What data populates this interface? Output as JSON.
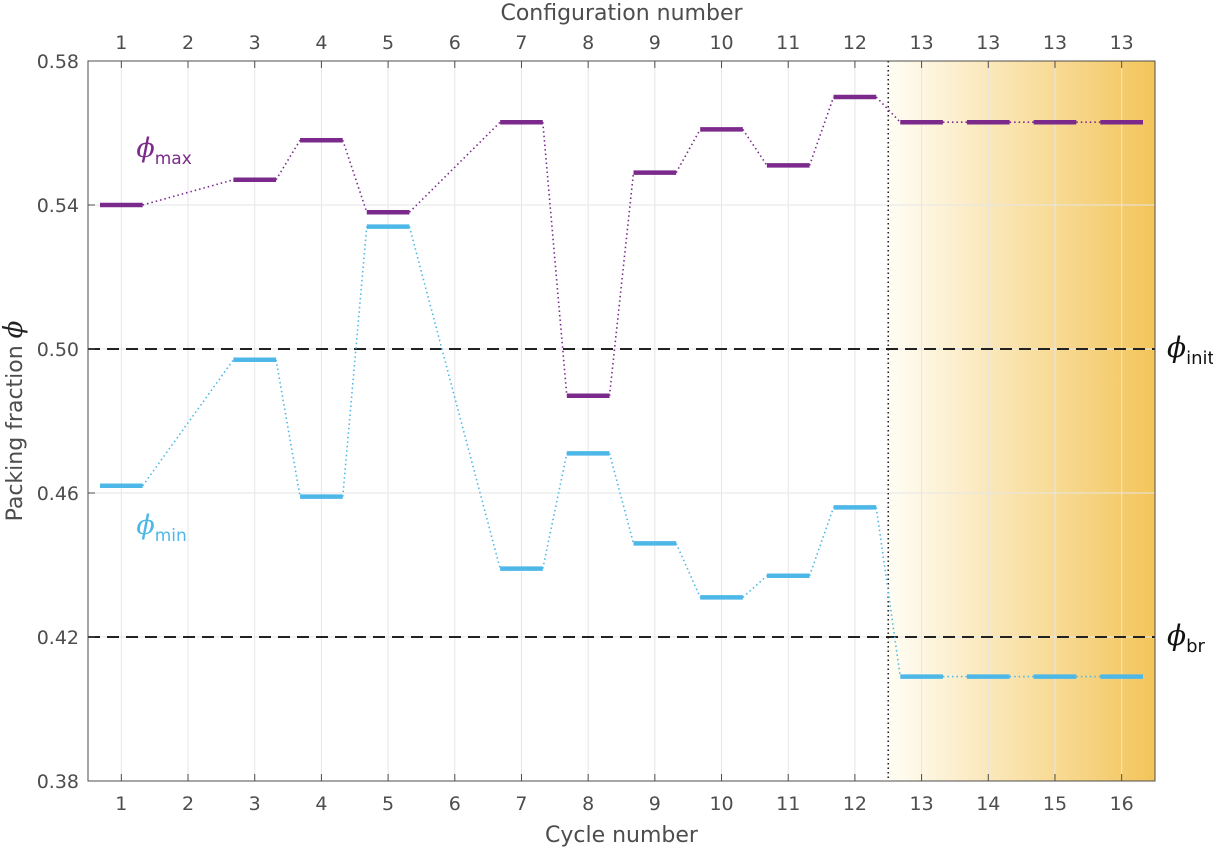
{
  "chart_data": {
    "type": "line",
    "xlabel": "Cycle number",
    "x2label": "Configuration number",
    "ylabel": "Packing fraction",
    "ylabel_symbol": "ϕ",
    "xlim": [
      0.5,
      16.5
    ],
    "ylim": [
      0.38,
      0.58
    ],
    "x_ticks": [
      1,
      2,
      3,
      4,
      5,
      6,
      7,
      8,
      9,
      10,
      11,
      12,
      13,
      14,
      15,
      16
    ],
    "x_tick_labels": [
      "1",
      "2",
      "3",
      "4",
      "5",
      "6",
      "7",
      "8",
      "9",
      "10",
      "11",
      "12",
      "13",
      "14",
      "15",
      "16"
    ],
    "x2_tick_labels": [
      "1",
      "2",
      "3",
      "4",
      "5",
      "6",
      "7",
      "8",
      "9",
      "10",
      "11",
      "12",
      "13",
      "13",
      "13",
      "13"
    ],
    "y_ticks": [
      0.38,
      0.42,
      0.46,
      0.5,
      0.54,
      0.58
    ],
    "y_tick_labels": [
      "0.38",
      "0.42",
      "0.46",
      "0.50",
      "0.54",
      "0.58"
    ],
    "grid": true,
    "series": [
      {
        "name": "max",
        "label_symbol": "ϕ",
        "label_sub": "max",
        "color": "#7B2A8C",
        "x": [
          1,
          3,
          4,
          5,
          7,
          8,
          9,
          10,
          11,
          12,
          13,
          14,
          15,
          16
        ],
        "values": [
          0.54,
          0.547,
          0.558,
          0.538,
          0.563,
          0.487,
          0.549,
          0.561,
          0.551,
          0.57,
          0.563,
          0.563,
          0.563,
          0.563
        ]
      },
      {
        "name": "min",
        "label_symbol": "ϕ",
        "label_sub": "min",
        "color": "#4DB8E8",
        "x": [
          1,
          3,
          4,
          5,
          7,
          8,
          9,
          10,
          11,
          12,
          13,
          14,
          15,
          16
        ],
        "values": [
          0.462,
          0.497,
          0.459,
          0.534,
          0.439,
          0.471,
          0.446,
          0.431,
          0.437,
          0.456,
          0.409,
          0.409,
          0.409,
          0.409
        ]
      }
    ],
    "reference_lines": [
      {
        "y": 0.5,
        "symbol": "ϕ",
        "sub": "init",
        "style": "dashed",
        "color": "#222222"
      },
      {
        "y": 0.42,
        "symbol": "ϕ",
        "sub": "br",
        "style": "dashed",
        "color": "#222222"
      }
    ],
    "vertical_marker": {
      "x": 12.5,
      "style": "dotted",
      "color": "#222222"
    },
    "shaded_region": {
      "x_from": 12.5,
      "x_to": 16.5,
      "color_start": "#FFFDF5",
      "color_end": "#F3C55A"
    }
  }
}
